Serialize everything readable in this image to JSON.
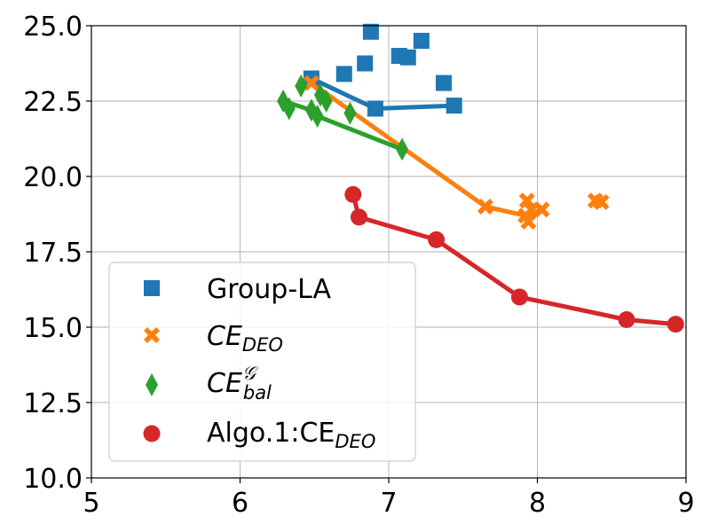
{
  "chart_data": {
    "type": "scatter",
    "title": "",
    "xlabel": "",
    "ylabel": "",
    "xlim": [
      5,
      9
    ],
    "ylim": [
      10,
      25
    ],
    "grid": true,
    "legend_position": "lower-left",
    "x_ticks": [
      "5",
      "6",
      "7",
      "8",
      "9"
    ],
    "x_tick_values": [
      5,
      6,
      7,
      8,
      9
    ],
    "y_ticks": [
      "10.0",
      "12.5",
      "15.0",
      "17.5",
      "20.0",
      "22.5",
      "25.0"
    ],
    "y_tick_values": [
      10,
      12.5,
      15,
      17.5,
      20,
      22.5,
      25
    ],
    "series": [
      {
        "name": "Group-LA",
        "color": "#1f77b4",
        "marker": "square",
        "points": [
          [
            6.48,
            23.25
          ],
          [
            6.7,
            23.4
          ],
          [
            6.84,
            23.75
          ],
          [
            6.88,
            24.8
          ],
          [
            7.07,
            24.0
          ],
          [
            7.13,
            23.95
          ],
          [
            7.22,
            24.5
          ],
          [
            7.37,
            23.1
          ],
          [
            6.91,
            22.25
          ],
          [
            7.44,
            22.35
          ]
        ],
        "line": [
          [
            6.48,
            23.25
          ],
          [
            6.91,
            22.25
          ],
          [
            7.44,
            22.35
          ]
        ]
      },
      {
        "name": "CE_DEO",
        "name_main": "CE",
        "name_sub": "DEO",
        "color": "#ff7f0e",
        "marker": "x",
        "points": [
          [
            6.48,
            23.1
          ],
          [
            7.65,
            19.0
          ],
          [
            7.92,
            18.7
          ],
          [
            7.93,
            19.2
          ],
          [
            7.94,
            18.5
          ],
          [
            7.96,
            18.9
          ],
          [
            8.03,
            18.9
          ],
          [
            8.39,
            19.2
          ],
          [
            8.43,
            19.15
          ]
        ],
        "line": [
          [
            6.48,
            23.1
          ],
          [
            7.65,
            19.0
          ],
          [
            7.92,
            18.7
          ],
          [
            8.03,
            18.9
          ]
        ]
      },
      {
        "name": "CE_bal^G",
        "name_main": "CE",
        "name_sub": "bal",
        "name_sup": "𝒢",
        "color": "#2ca02c",
        "marker": "thin-diamond",
        "points": [
          [
            6.29,
            22.5
          ],
          [
            6.33,
            22.25
          ],
          [
            6.41,
            23.0
          ],
          [
            6.48,
            22.2
          ],
          [
            6.52,
            22.0
          ],
          [
            6.54,
            22.7
          ],
          [
            6.58,
            22.5
          ],
          [
            6.74,
            22.1
          ],
          [
            7.09,
            20.9
          ]
        ],
        "line": [
          [
            6.29,
            22.5
          ],
          [
            6.48,
            22.2
          ],
          [
            6.52,
            22.0
          ],
          [
            7.09,
            20.9
          ]
        ]
      },
      {
        "name": "Algo.1:CE_DEO",
        "name_main": "Algo.1:CE",
        "name_sub": "DEO",
        "color": "#d62728",
        "marker": "circle",
        "points": [
          [
            6.76,
            19.4
          ],
          [
            6.8,
            18.65
          ],
          [
            7.32,
            17.9
          ],
          [
            7.88,
            16.0
          ],
          [
            8.6,
            15.25
          ],
          [
            8.93,
            15.1
          ]
        ],
        "line": [
          [
            6.76,
            19.4
          ],
          [
            6.8,
            18.65
          ],
          [
            7.32,
            17.9
          ],
          [
            7.88,
            16.0
          ],
          [
            8.6,
            15.25
          ],
          [
            8.93,
            15.1
          ]
        ]
      }
    ],
    "legend": [
      {
        "label": "Group-LA"
      },
      {
        "main": "CE",
        "sub": "DEO"
      },
      {
        "main": "CE",
        "sub": "bal",
        "sup": "𝒢"
      },
      {
        "main": "Algo.1:CE",
        "sub": "DEO"
      }
    ]
  }
}
